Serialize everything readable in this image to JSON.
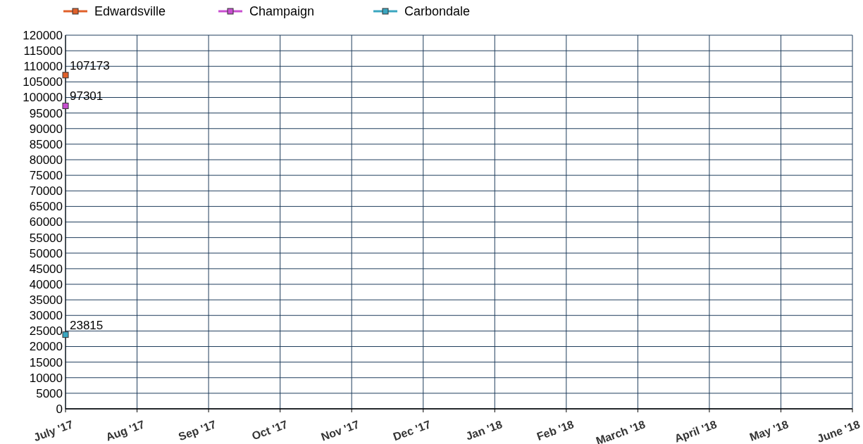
{
  "chart_data": {
    "type": "line",
    "categories": [
      "July '17",
      "Aug '17",
      "Sep '17",
      "Oct '17",
      "Nov '17",
      "Dec '17",
      "Jan '18",
      "Feb '18",
      "March '18",
      "April '18",
      "May '18",
      "June '18"
    ],
    "series": [
      {
        "name": "Edwardsville",
        "color": "#e0602a",
        "values": [
          107173,
          null,
          null,
          null,
          null,
          null,
          null,
          null,
          null,
          null,
          null,
          null
        ]
      },
      {
        "name": "Champaign",
        "color": "#c84fd0",
        "values": [
          97301,
          null,
          null,
          null,
          null,
          null,
          null,
          null,
          null,
          null,
          null,
          null
        ]
      },
      {
        "name": "Carbondale",
        "color": "#3aa6c0",
        "values": [
          23815,
          null,
          null,
          null,
          null,
          null,
          null,
          null,
          null,
          null,
          null,
          null
        ]
      }
    ],
    "ylim": [
      0,
      120000
    ],
    "yticks": [
      0,
      5000,
      10000,
      15000,
      20000,
      25000,
      30000,
      35000,
      40000,
      45000,
      50000,
      55000,
      60000,
      65000,
      70000,
      75000,
      80000,
      85000,
      90000,
      95000,
      100000,
      105000,
      110000,
      115000,
      120000
    ],
    "grid": true,
    "legend": "top left",
    "marker": "square",
    "line_style": "solid",
    "data_labels": true
  }
}
